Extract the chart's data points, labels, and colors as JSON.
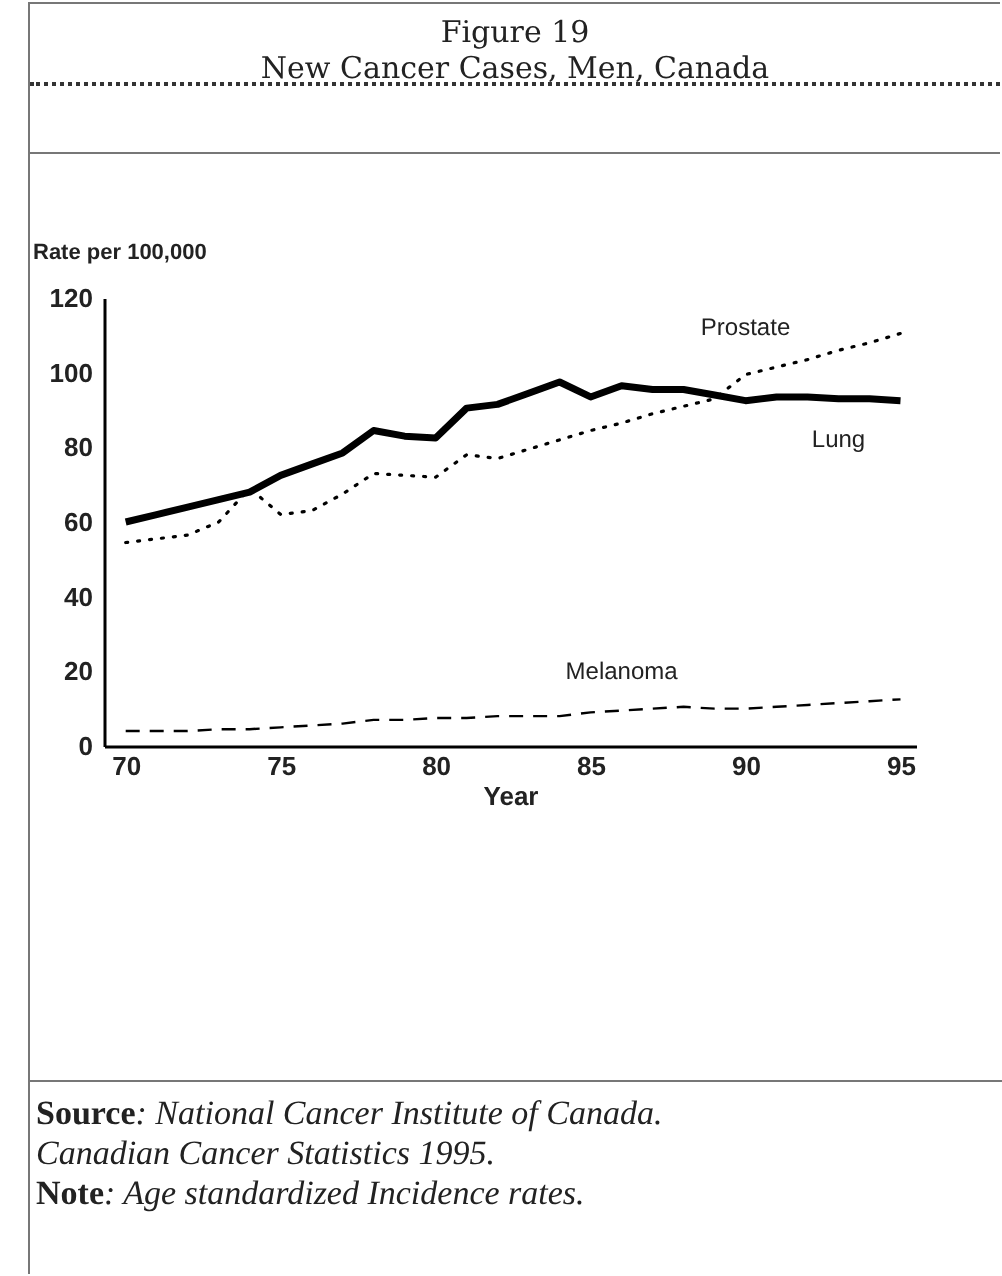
{
  "chart_data": {
    "type": "line",
    "title": "Figure 19",
    "subtitle": "New Cancer Cases, Men, Canada",
    "xlabel": "Year",
    "ylabel": "Rate per 100,000",
    "x": [
      70,
      71,
      72,
      73,
      74,
      75,
      76,
      77,
      78,
      79,
      80,
      81,
      82,
      83,
      84,
      85,
      86,
      87,
      88,
      89,
      90,
      91,
      92,
      93,
      94,
      95
    ],
    "series": [
      {
        "name": "Prostate",
        "color": "#000000",
        "line_style": "dotted",
        "values": [
          54.5,
          55.5,
          56.5,
          60,
          69,
          62,
          63,
          67.5,
          73,
          72.5,
          72,
          78,
          77,
          79.5,
          82,
          84.5,
          86.5,
          89,
          91,
          93,
          99.5,
          101.5,
          103.5,
          106,
          108,
          110.5
        ]
      },
      {
        "name": "Lung",
        "color": "#000000",
        "line_style": "solid",
        "values": [
          60,
          62,
          64,
          66,
          68,
          72.5,
          75.5,
          78.5,
          84.5,
          83,
          82.5,
          90.5,
          91.5,
          94.5,
          97.5,
          93.5,
          96.5,
          95.5,
          95.5,
          94,
          92.5,
          93.5,
          93.5,
          93,
          93,
          92.5
        ]
      },
      {
        "name": "Melanoma",
        "color": "#000000",
        "line_style": "dashed",
        "values": [
          4,
          4,
          4,
          4.5,
          4.5,
          5,
          5.5,
          6,
          7,
          7,
          7.5,
          7.5,
          8,
          8,
          8,
          9,
          9.5,
          10,
          10.5,
          10,
          10,
          10.5,
          11,
          11.5,
          12,
          12.5
        ]
      }
    ],
    "xlim": [
      69.3,
      95.5
    ],
    "xticks": [
      70,
      75,
      80,
      85,
      90,
      95
    ],
    "ylim": [
      0,
      120
    ],
    "yticks": [
      0,
      20,
      40,
      60,
      80,
      100,
      120
    ],
    "grid": false,
    "marker": "none",
    "annotations": [
      "Source: National Cancer Institute of Canada.",
      "Canadian Cancer Statistics 1995.",
      "Note: Age standardized Incidence rates."
    ]
  }
}
